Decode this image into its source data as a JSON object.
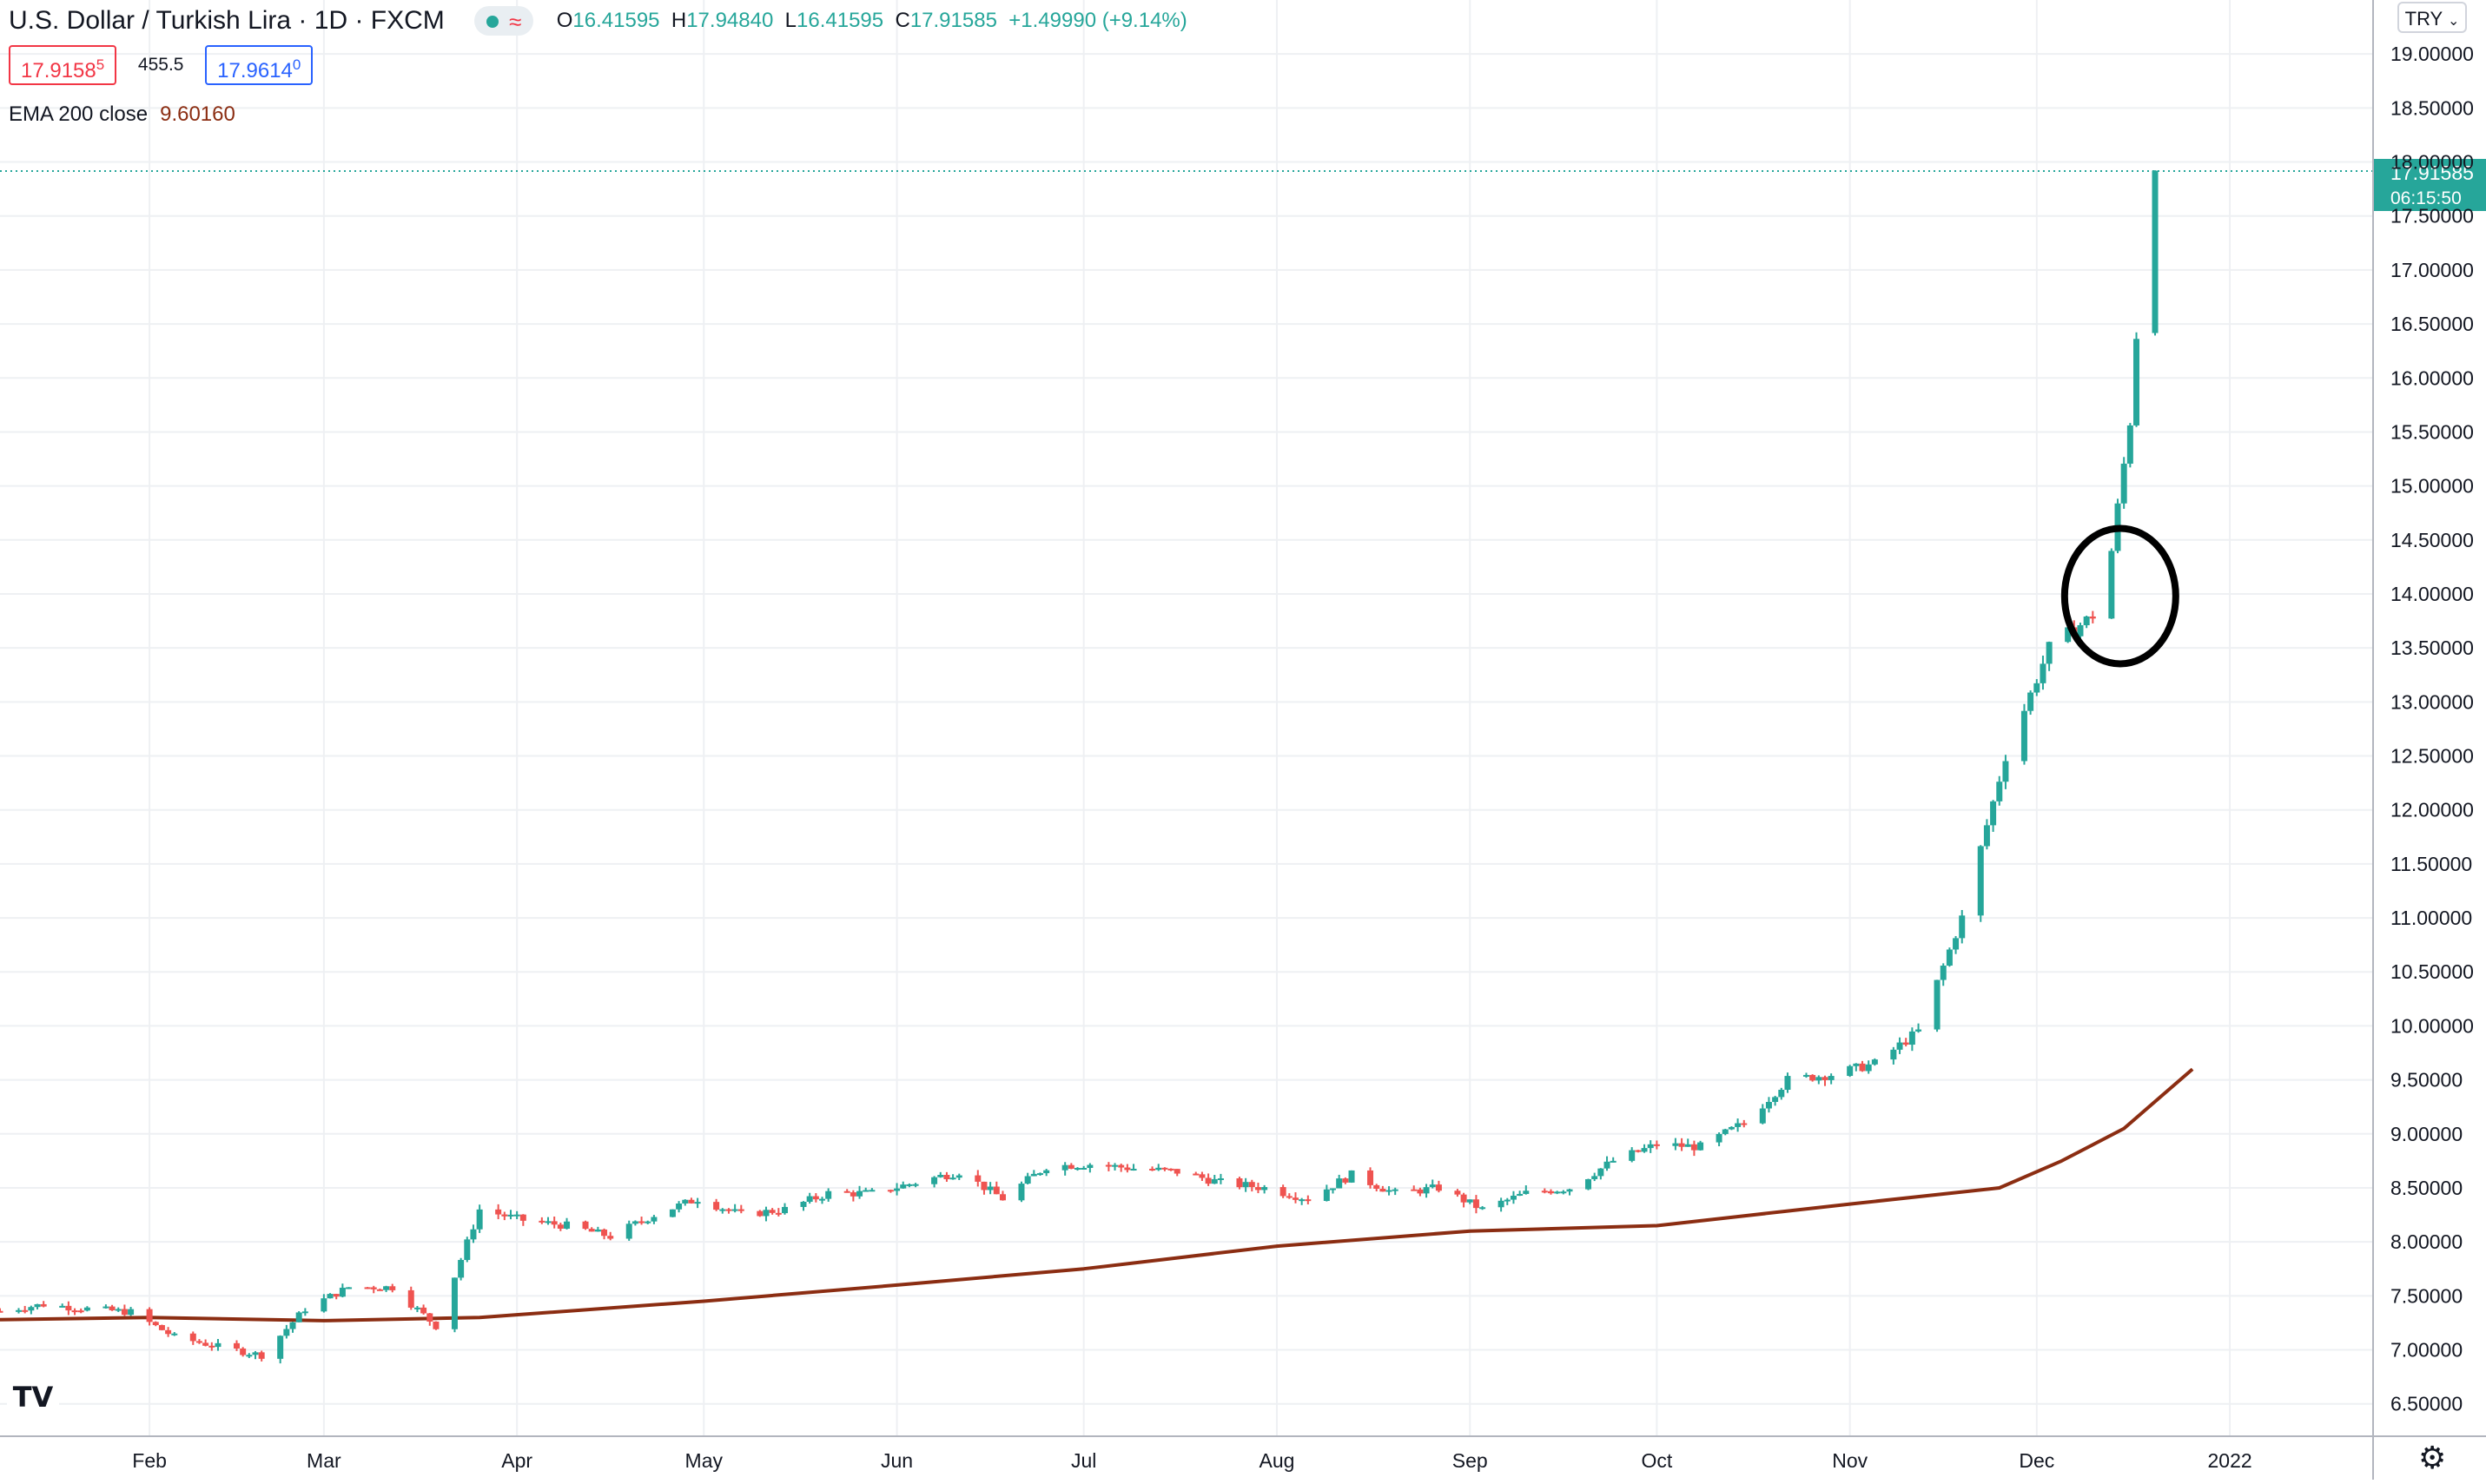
{
  "header": {
    "symbol_title": "U.S. Dollar / Turkish Lira · 1D · FXCM",
    "ohlc": [
      {
        "label": "O",
        "value": "16.41595"
      },
      {
        "label": "H",
        "value": "17.94840"
      },
      {
        "label": "L",
        "value": "16.41595"
      },
      {
        "label": "C",
        "value": "17.91585"
      }
    ],
    "change": "+1.49990 (+9.14%)",
    "bid_main": "17.9158",
    "bid_small": "5",
    "spread": "455.5",
    "ask_main": "17.9614",
    "ask_small": "0",
    "indicator_label": "EMA 200 close",
    "indicator_value": "9.60160",
    "currency": "TRY"
  },
  "colors": {
    "up": "#26a69a",
    "down": "#ef5350",
    "ema": "#8b2d12",
    "grid": "#eef0f3",
    "axis_text": "#131722",
    "marker": "#000000"
  },
  "icons": {
    "logo": "tradingview-logo-icon",
    "settings": "gear-icon",
    "dropdown": "chevron-down-icon"
  },
  "chart_data": {
    "type": "candlestick",
    "title": "U.S. Dollar / Turkish Lira",
    "y_ticks": [
      "6.50000",
      "7.00000",
      "7.50000",
      "8.00000",
      "8.50000",
      "9.00000",
      "9.50000",
      "10.00000",
      "10.50000",
      "11.00000",
      "11.50000",
      "12.00000",
      "12.50000",
      "13.00000",
      "13.50000",
      "14.00000",
      "14.50000",
      "15.00000",
      "15.50000",
      "16.00000",
      "16.50000",
      "17.00000",
      "17.50000",
      "18.00000",
      "18.50000",
      "19.00000"
    ],
    "x_ticks": [
      {
        "label": "Feb",
        "date": "2021-02-01"
      },
      {
        "label": "Mar",
        "date": "2021-03-01"
      },
      {
        "label": "Apr",
        "date": "2021-04-01"
      },
      {
        "label": "May",
        "date": "2021-05-01"
      },
      {
        "label": "Jun",
        "date": "2021-06-01"
      },
      {
        "label": "Jul",
        "date": "2021-07-01"
      },
      {
        "label": "Aug",
        "date": "2021-08-01"
      },
      {
        "label": "Sep",
        "date": "2021-09-01"
      },
      {
        "label": "Oct",
        "date": "2021-10-01"
      },
      {
        "label": "Nov",
        "date": "2021-11-01"
      },
      {
        "label": "Dec",
        "date": "2021-12-01"
      },
      {
        "label": "2022",
        "date": "2022-01-01"
      }
    ],
    "y_range": [
      6.2,
      19.5
    ],
    "x_range": [
      "2021-01-08",
      "2022-01-24"
    ],
    "last_price": {
      "value": 17.91585,
      "label": "17.91585",
      "countdown": "06:15:50"
    },
    "close_series": [
      [
        "2021-01-08",
        7.36
      ],
      [
        "2021-01-15",
        7.42
      ],
      [
        "2021-01-22",
        7.38
      ],
      [
        "2021-01-29",
        7.35
      ],
      [
        "2021-02-05",
        7.12
      ],
      [
        "2021-02-12",
        7.03
      ],
      [
        "2021-02-19",
        6.95
      ],
      [
        "2021-02-26",
        7.38
      ],
      [
        "2021-03-05",
        7.58
      ],
      [
        "2021-03-12",
        7.58
      ],
      [
        "2021-03-19",
        7.22
      ],
      [
        "2021-03-26",
        8.3
      ],
      [
        "2021-04-02",
        8.2
      ],
      [
        "2021-04-09",
        8.15
      ],
      [
        "2021-04-16",
        8.05
      ],
      [
        "2021-04-23",
        8.25
      ],
      [
        "2021-04-30",
        8.4
      ],
      [
        "2021-05-07",
        8.25
      ],
      [
        "2021-05-14",
        8.3
      ],
      [
        "2021-05-21",
        8.45
      ],
      [
        "2021-05-28",
        8.45
      ],
      [
        "2021-06-04",
        8.55
      ],
      [
        "2021-06-11",
        8.65
      ],
      [
        "2021-06-18",
        8.4
      ],
      [
        "2021-06-25",
        8.7
      ],
      [
        "2021-07-02",
        8.72
      ],
      [
        "2021-07-09",
        8.68
      ],
      [
        "2021-07-16",
        8.65
      ],
      [
        "2021-07-23",
        8.55
      ],
      [
        "2021-07-30",
        8.5
      ],
      [
        "2021-08-06",
        8.4
      ],
      [
        "2021-08-13",
        8.62
      ],
      [
        "2021-08-20",
        8.45
      ],
      [
        "2021-08-27",
        8.5
      ],
      [
        "2021-09-03",
        8.3
      ],
      [
        "2021-09-10",
        8.45
      ],
      [
        "2021-09-17",
        8.5
      ],
      [
        "2021-09-24",
        8.75
      ],
      [
        "2021-10-01",
        8.9
      ],
      [
        "2021-10-08",
        8.88
      ],
      [
        "2021-10-15",
        9.1
      ],
      [
        "2021-10-22",
        9.5
      ],
      [
        "2021-10-29",
        9.55
      ],
      [
        "2021-11-05",
        9.65
      ],
      [
        "2021-11-12",
        9.95
      ],
      [
        "2021-11-19",
        11.0
      ],
      [
        "2021-11-26",
        12.5
      ],
      [
        "2021-12-03",
        13.5
      ],
      [
        "2021-12-10",
        13.8
      ],
      [
        "2021-12-13",
        14.4
      ],
      [
        "2021-12-16",
        15.6
      ],
      [
        "2021-12-17",
        16.4
      ],
      [
        "2021-12-20",
        17.92
      ]
    ],
    "ema_200": [
      [
        "2021-01-08",
        7.28
      ],
      [
        "2021-02-01",
        7.3
      ],
      [
        "2021-03-01",
        7.27
      ],
      [
        "2021-03-26",
        7.3
      ],
      [
        "2021-05-01",
        7.45
      ],
      [
        "2021-06-01",
        7.6
      ],
      [
        "2021-07-01",
        7.75
      ],
      [
        "2021-08-01",
        7.96
      ],
      [
        "2021-09-01",
        8.1
      ],
      [
        "2021-10-01",
        8.15
      ],
      [
        "2021-11-01",
        8.35
      ],
      [
        "2021-11-25",
        8.5
      ],
      [
        "2021-12-05",
        8.75
      ],
      [
        "2021-12-15",
        9.05
      ],
      [
        "2021-12-26",
        9.6
      ]
    ],
    "annotation": {
      "type": "circle",
      "center_date": "2021-12-13",
      "center_value": 13.98
    }
  }
}
